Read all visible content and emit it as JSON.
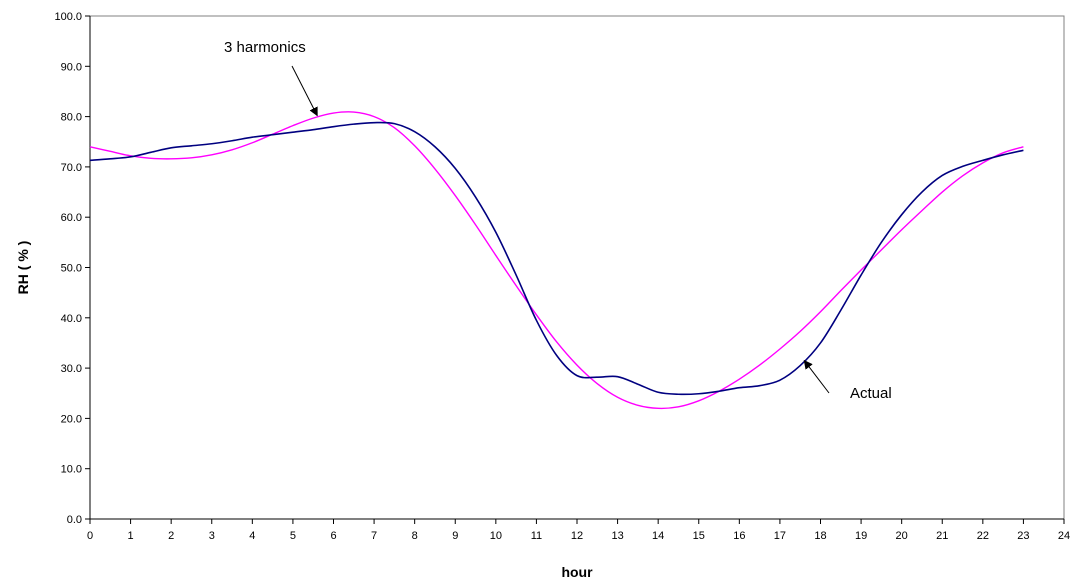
{
  "chart_data": {
    "type": "line",
    "title": "",
    "xlabel": "hour",
    "ylabel": "RH ( % )",
    "xlim": [
      0,
      24
    ],
    "ylim": [
      0,
      100
    ],
    "x_ticks": [
      0,
      1,
      2,
      3,
      4,
      5,
      6,
      7,
      8,
      9,
      10,
      11,
      12,
      13,
      14,
      15,
      16,
      17,
      18,
      19,
      20,
      21,
      22,
      23,
      24
    ],
    "y_ticks": [
      0,
      10,
      20,
      30,
      40,
      50,
      60,
      70,
      80,
      90,
      100
    ],
    "y_tick_labels": [
      "0.0",
      "10.0",
      "20.0",
      "30.0",
      "40.0",
      "50.0",
      "60.0",
      "70.0",
      "80.0",
      "90.0",
      "100.0"
    ],
    "grid": false,
    "series": [
      {
        "name": "Actual",
        "color": "#000080",
        "x": [
          0,
          0.5,
          1,
          1.5,
          2,
          2.5,
          3,
          3.5,
          4,
          4.5,
          5,
          5.5,
          6,
          6.5,
          7,
          7.5,
          8,
          8.5,
          9,
          9.5,
          10,
          10.5,
          11,
          11.5,
          12,
          12.5,
          13,
          13.5,
          14,
          14.5,
          15,
          15.5,
          16,
          16.5,
          17,
          17.5,
          18,
          18.5,
          19,
          19.5,
          20,
          20.5,
          21,
          21.5,
          22,
          22.5,
          23
        ],
        "values": [
          71.3,
          71.6,
          72.0,
          72.9,
          73.8,
          74.2,
          74.6,
          75.2,
          75.9,
          76.4,
          76.9,
          77.4,
          78.0,
          78.5,
          78.8,
          78.6,
          77.0,
          74.0,
          69.7,
          64.0,
          57.0,
          48.5,
          39.5,
          32.5,
          28.5,
          28.2,
          28.3,
          26.8,
          25.2,
          24.8,
          24.9,
          25.4,
          26.1,
          26.5,
          27.6,
          30.5,
          35.0,
          41.5,
          48.5,
          55.0,
          60.5,
          65.0,
          68.3,
          70.1,
          71.3,
          72.4,
          73.3
        ]
      },
      {
        "name": "3 harmonics",
        "color": "#FF00FF",
        "x": [
          0,
          0.5,
          1,
          1.5,
          2,
          2.5,
          3,
          3.5,
          4,
          4.5,
          5,
          5.5,
          6,
          6.5,
          7,
          7.5,
          8,
          8.5,
          9,
          9.5,
          10,
          10.5,
          11,
          11.5,
          12,
          12.5,
          13,
          13.5,
          14,
          14.5,
          15,
          15.5,
          16,
          16.5,
          17,
          17.5,
          18,
          18.5,
          19,
          19.5,
          20,
          20.5,
          21,
          21.5,
          22,
          22.5,
          23
        ],
        "values": [
          74.0,
          73.1,
          72.2,
          71.7,
          71.6,
          71.8,
          72.4,
          73.4,
          74.8,
          76.5,
          78.2,
          79.7,
          80.7,
          80.9,
          80.0,
          77.8,
          74.2,
          69.6,
          64.3,
          58.5,
          52.4,
          46.4,
          40.6,
          35.2,
          30.6,
          26.9,
          24.2,
          22.6,
          22.0,
          22.3,
          23.5,
          25.4,
          27.8,
          30.6,
          33.8,
          37.3,
          41.2,
          45.4,
          49.5,
          53.5,
          57.5,
          61.3,
          65.0,
          68.2,
          70.8,
          72.8,
          74.0
        ]
      }
    ],
    "annotations": [
      {
        "text": "3 harmonics",
        "points_to": [
          5.6,
          80.2
        ]
      },
      {
        "text": "Actual",
        "points_to": [
          17.6,
          31.5
        ]
      }
    ]
  }
}
